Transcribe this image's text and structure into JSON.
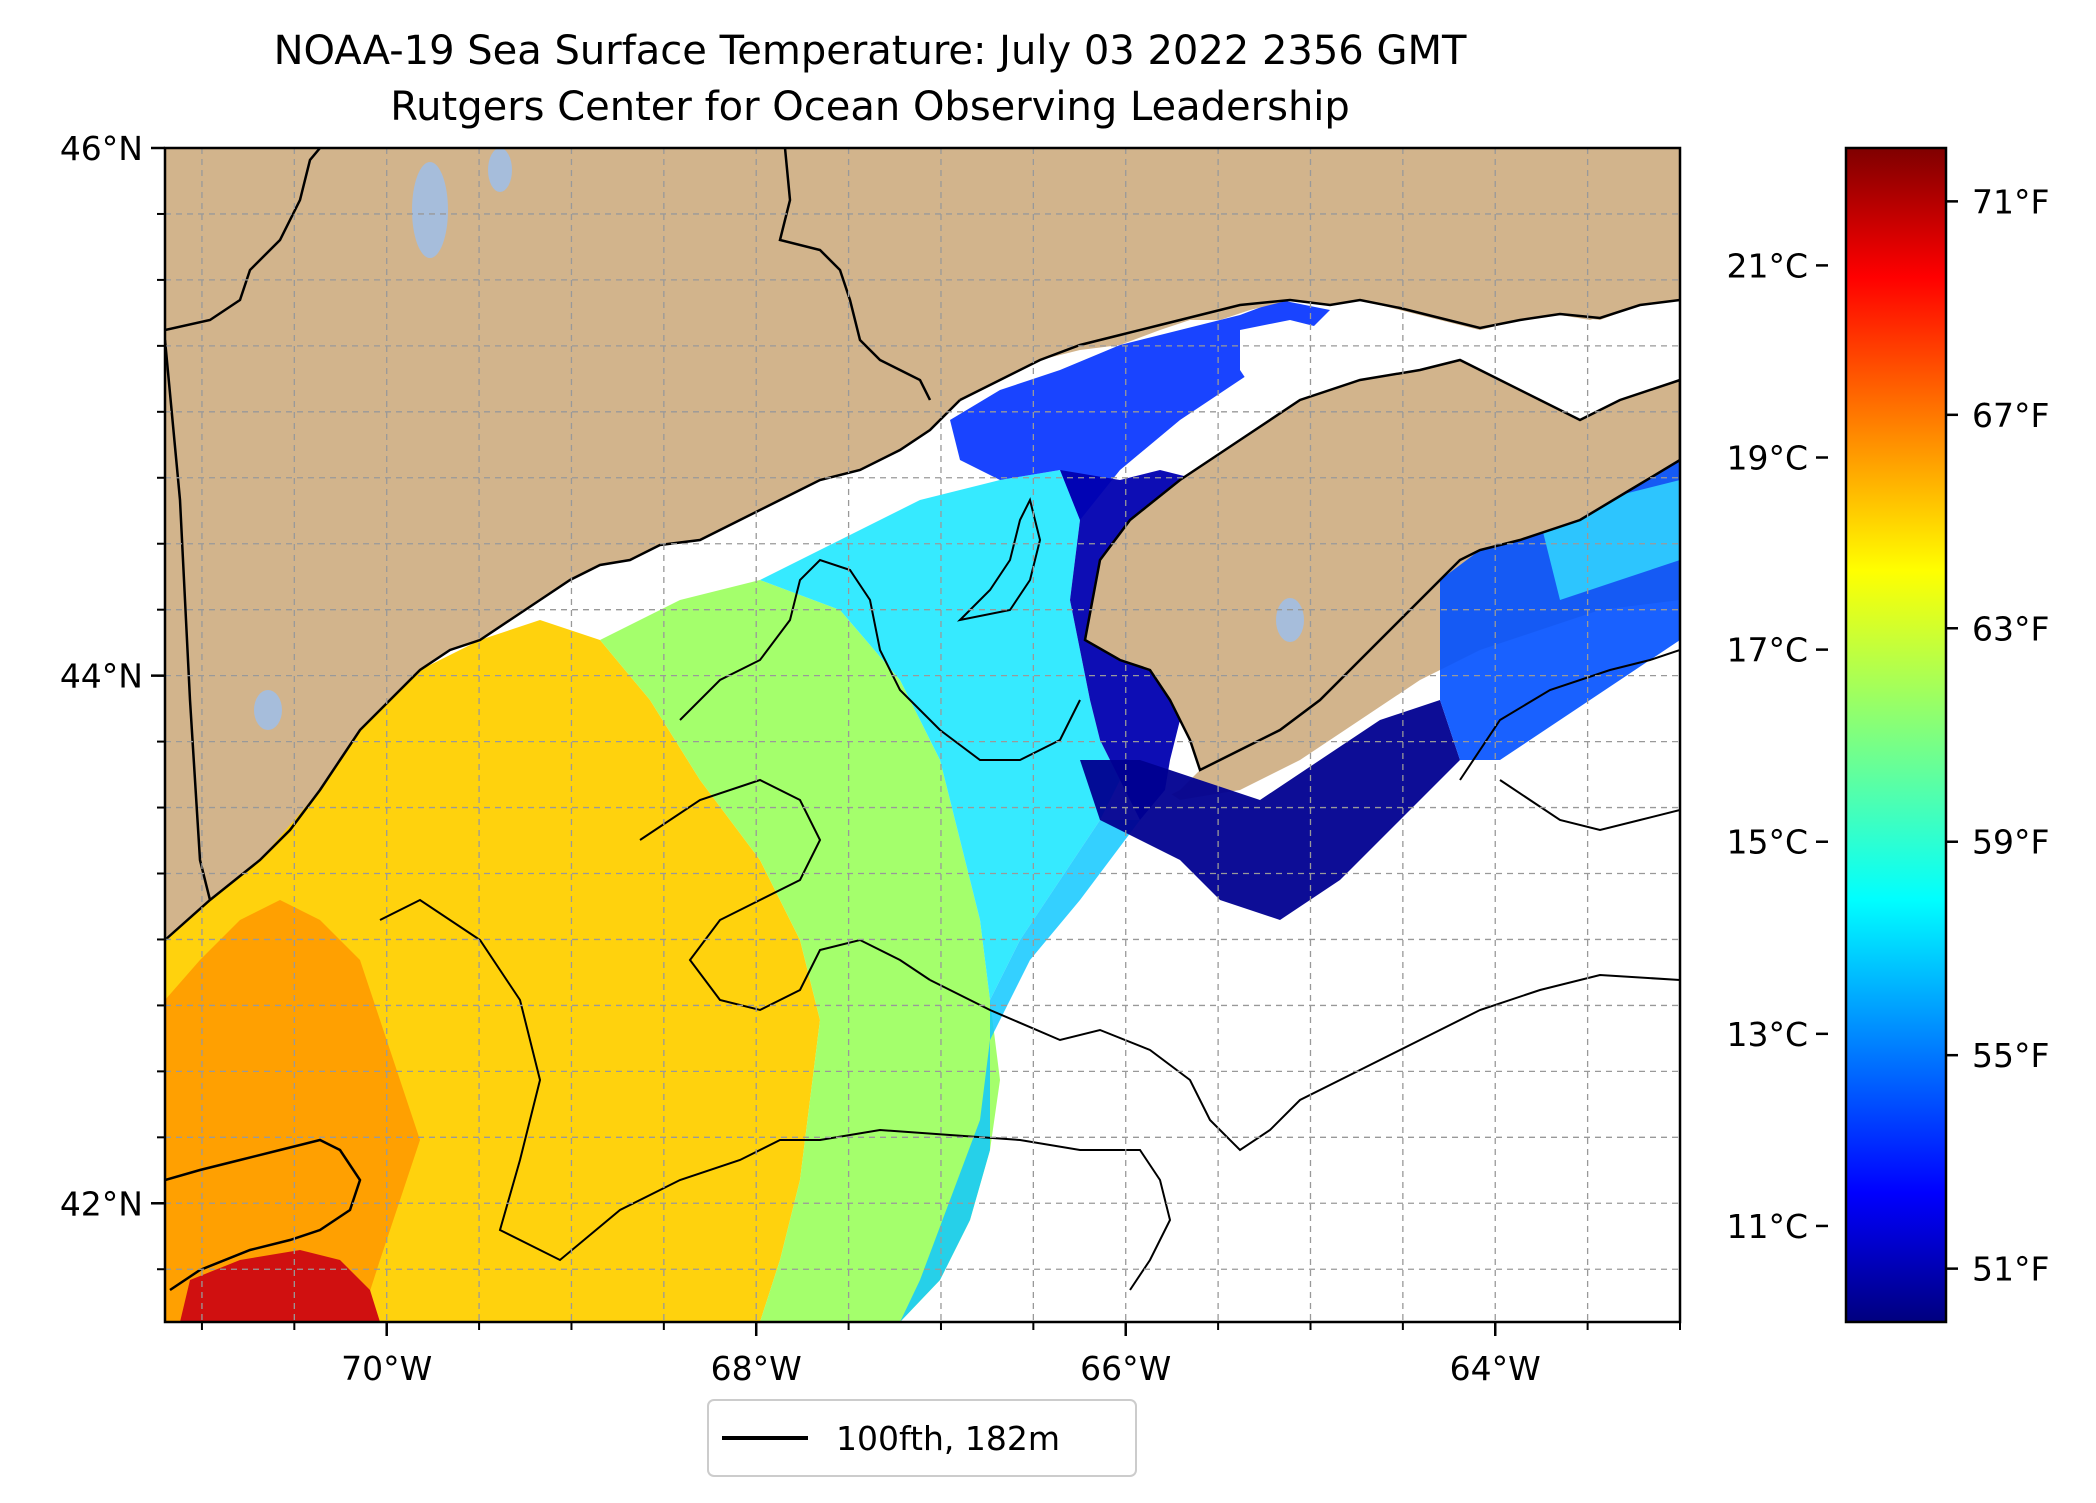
{
  "title": {
    "line1": "NOAA-19 Sea Surface Temperature: July 03 2022 2356 GMT",
    "line2": "Rutgers Center for Ocean Observing Leadership"
  },
  "map": {
    "lon_range": [
      -71.2,
      -63.0
    ],
    "lat_range": [
      41.55,
      46.0
    ],
    "lon_ticks": [
      {
        "value": -70,
        "label": "70°W"
      },
      {
        "value": -68,
        "label": "68°W"
      },
      {
        "value": -66,
        "label": "66°W"
      },
      {
        "value": -64,
        "label": "64°W"
      }
    ],
    "lat_ticks": [
      {
        "value": 46,
        "label": "46°N"
      },
      {
        "value": 44,
        "label": "44°N"
      },
      {
        "value": 42,
        "label": "42°N"
      }
    ],
    "grid": true,
    "land_color": "#d2b48c",
    "lake_color": "#a6bddb",
    "no_data_color": "#ffffff"
  },
  "colorbar": {
    "colormap": "jet",
    "celsius_ticks": [
      "21°C",
      "19°C",
      "17°C",
      "15°C",
      "13°C",
      "11°C"
    ],
    "fahrenheit_ticks": [
      "71°F",
      "67°F",
      "63°F",
      "59°F",
      "55°F",
      "51°F"
    ],
    "range_f": [
      50,
      72
    ]
  },
  "legend": {
    "label": "100fth, 182m",
    "line_color": "#000000"
  }
}
